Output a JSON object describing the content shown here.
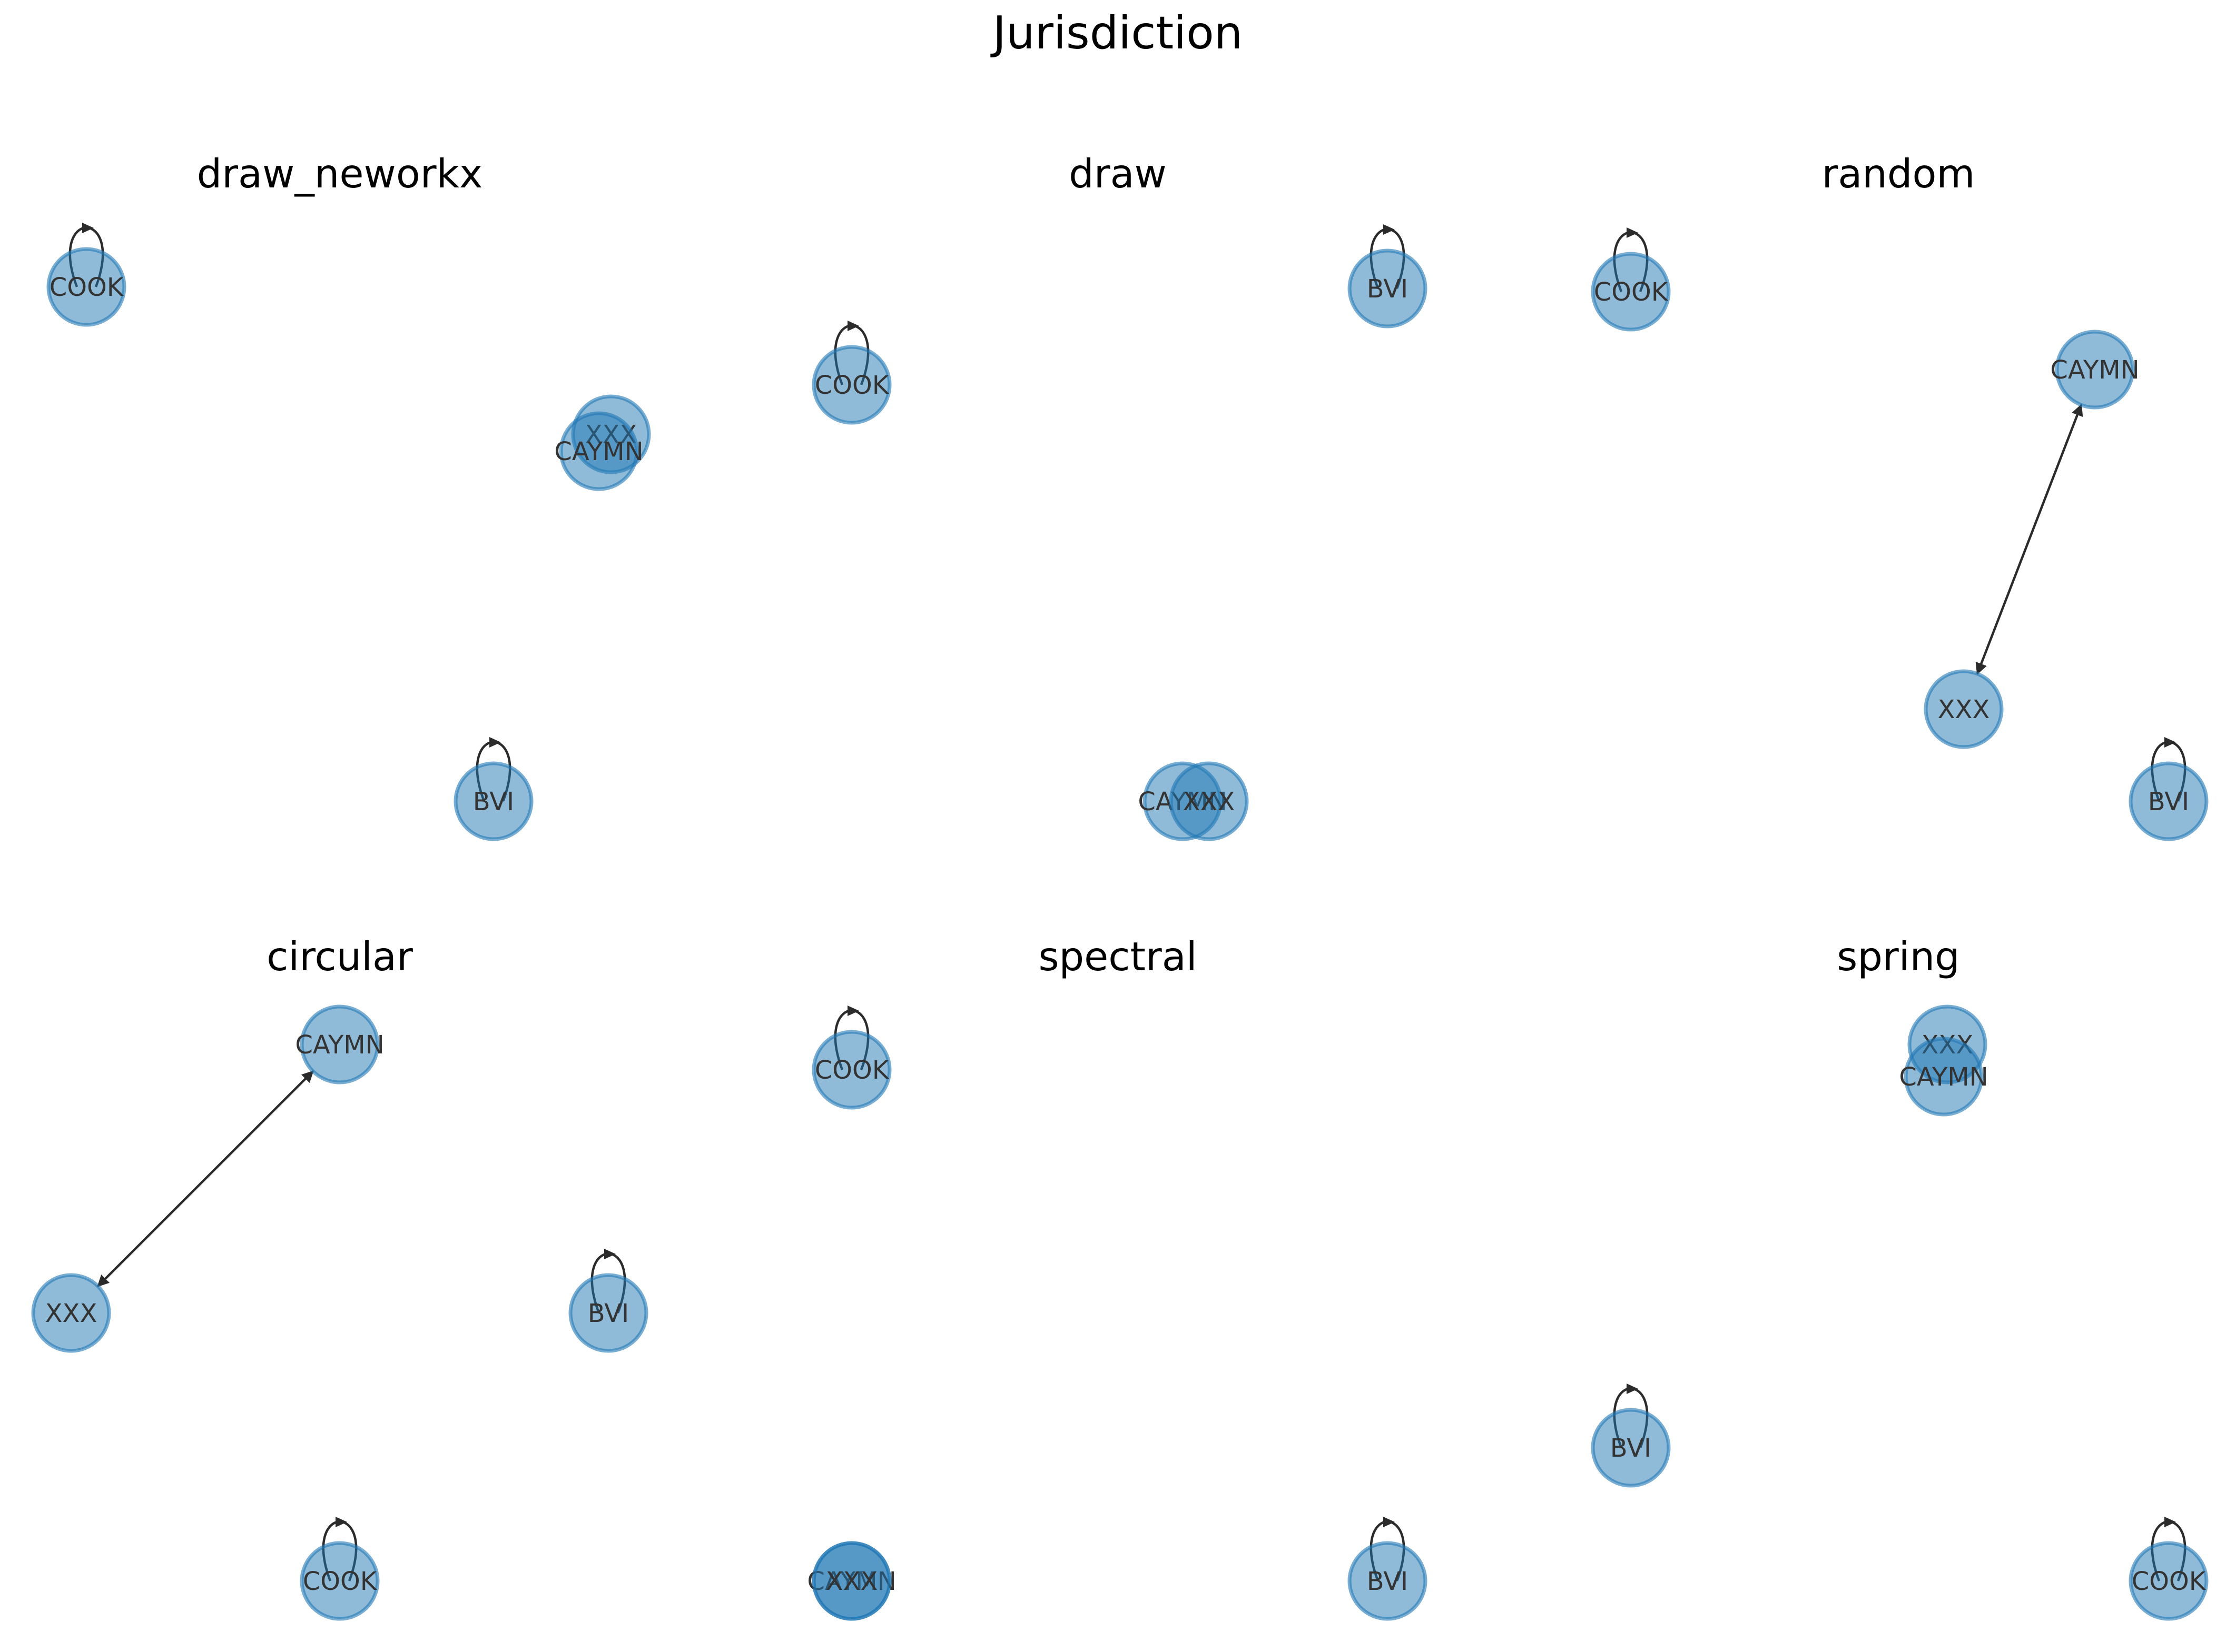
{
  "figure": {
    "title": "Jurisdiction",
    "node_color": "#1f77b4",
    "edge_color": "#2b2b2b"
  },
  "panels": [
    {
      "id": "draw_neworkx",
      "title": "draw_neworkx",
      "nodes": [
        {
          "id": "COOK",
          "label": "COOK"
        },
        {
          "id": "XXX",
          "label": "XXX"
        },
        {
          "id": "CAYMN",
          "label": "CAYMN"
        },
        {
          "id": "BVI",
          "label": "BVI"
        }
      ],
      "edges": [
        {
          "from": "COOK",
          "to": "COOK"
        },
        {
          "from": "BVI",
          "to": "BVI"
        },
        {
          "from": "XXX",
          "to": "CAYMN"
        },
        {
          "from": "CAYMN",
          "to": "XXX"
        }
      ]
    },
    {
      "id": "draw",
      "title": "draw",
      "nodes": [
        {
          "id": "BVI",
          "label": "BVI"
        },
        {
          "id": "COOK",
          "label": "COOK"
        },
        {
          "id": "CAYMN",
          "label": "CAYMN"
        },
        {
          "id": "XXX",
          "label": "XXX"
        }
      ],
      "edges": [
        {
          "from": "BVI",
          "to": "BVI"
        },
        {
          "from": "COOK",
          "to": "COOK"
        },
        {
          "from": "XXX",
          "to": "CAYMN"
        },
        {
          "from": "CAYMN",
          "to": "XXX"
        }
      ]
    },
    {
      "id": "random",
      "title": "random",
      "nodes": [
        {
          "id": "COOK",
          "label": "COOK"
        },
        {
          "id": "CAYMN",
          "label": "CAYMN"
        },
        {
          "id": "XXX",
          "label": "XXX"
        },
        {
          "id": "BVI",
          "label": "BVI"
        }
      ],
      "edges": [
        {
          "from": "COOK",
          "to": "COOK"
        },
        {
          "from": "BVI",
          "to": "BVI"
        },
        {
          "from": "XXX",
          "to": "CAYMN"
        },
        {
          "from": "CAYMN",
          "to": "XXX"
        }
      ]
    },
    {
      "id": "circular",
      "title": "circular",
      "nodes": [
        {
          "id": "CAYMN",
          "label": "CAYMN"
        },
        {
          "id": "XXX",
          "label": "XXX"
        },
        {
          "id": "BVI",
          "label": "BVI"
        },
        {
          "id": "COOK",
          "label": "COOK"
        }
      ],
      "edges": [
        {
          "from": "BVI",
          "to": "BVI"
        },
        {
          "from": "COOK",
          "to": "COOK"
        },
        {
          "from": "XXX",
          "to": "CAYMN"
        },
        {
          "from": "CAYMN",
          "to": "XXX"
        }
      ]
    },
    {
      "id": "spectral",
      "title": "spectral",
      "nodes": [
        {
          "id": "COOK",
          "label": "COOK"
        },
        {
          "id": "CAYMN",
          "label": "CAYMN"
        },
        {
          "id": "XXX",
          "label": "XXX"
        },
        {
          "id": "BVI",
          "label": "BVI"
        }
      ],
      "edges": [
        {
          "from": "COOK",
          "to": "COOK"
        },
        {
          "from": "BVI",
          "to": "BVI"
        },
        {
          "from": "XXX",
          "to": "CAYMN"
        },
        {
          "from": "CAYMN",
          "to": "XXX"
        }
      ]
    },
    {
      "id": "spring",
      "title": "spring",
      "nodes": [
        {
          "id": "XXX",
          "label": "XXX"
        },
        {
          "id": "CAYMN",
          "label": "CAYMN"
        },
        {
          "id": "BVI",
          "label": "BVI"
        },
        {
          "id": "COOK",
          "label": "COOK"
        }
      ],
      "edges": [
        {
          "from": "BVI",
          "to": "BVI"
        },
        {
          "from": "COOK",
          "to": "COOK"
        },
        {
          "from": "XXX",
          "to": "CAYMN"
        },
        {
          "from": "CAYMN",
          "to": "XXX"
        }
      ]
    }
  ]
}
